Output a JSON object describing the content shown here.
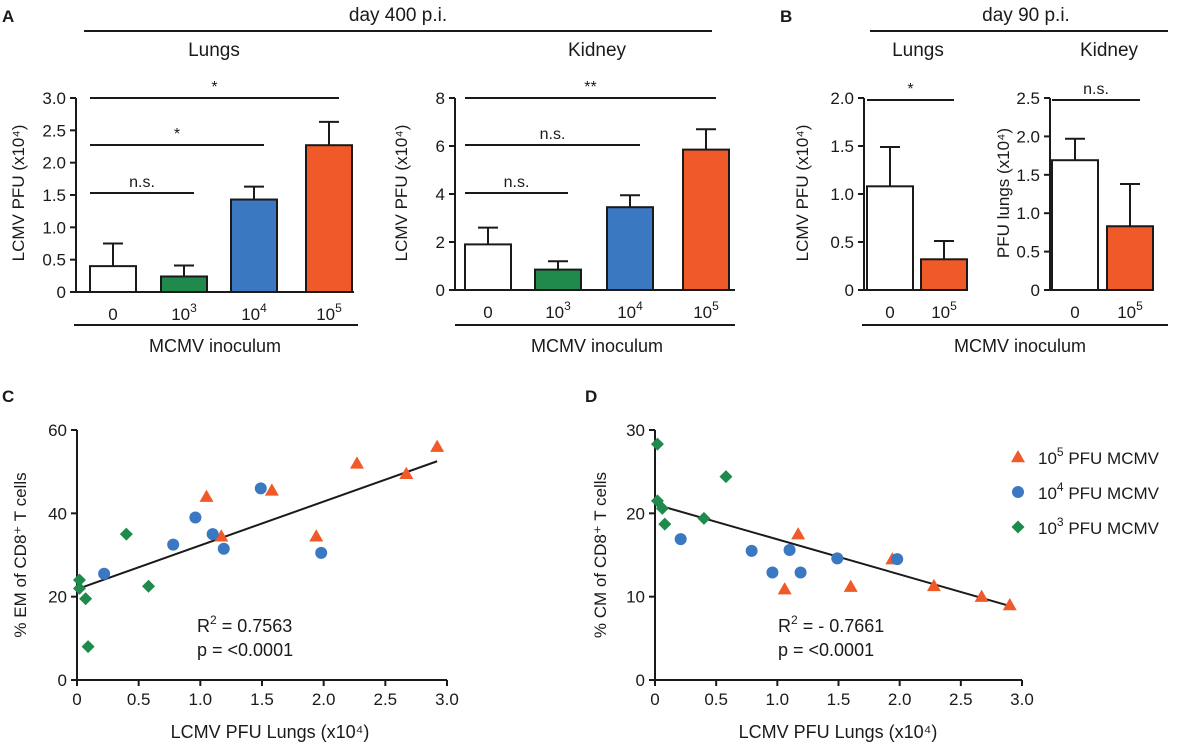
{
  "figure": {
    "panel_labels": {
      "A": "A",
      "B": "B",
      "C": "C",
      "D": "D"
    },
    "headers": {
      "a_time": "day 400 p.i.",
      "b_time": "day 90 p.i."
    },
    "xlabel_inoculum": "MCMV inoculum",
    "colors": {
      "naive": "#ffffff",
      "d3": "#1f8a4c",
      "d4": "#3a78c2",
      "d5": "#f05a28",
      "axis": "#1a1a1a"
    }
  },
  "chart_data": [
    {
      "id": "a_lungs",
      "type": "bar",
      "panel": "A",
      "title": "Lungs",
      "ylabel": "LCMV PFU (x10⁴)",
      "ylim": [
        0,
        3.0
      ],
      "yticks": [
        "0",
        "0.5",
        "1.0",
        "1.5",
        "2.0",
        "2.5",
        "3.0"
      ],
      "categories": [
        {
          "base": "0",
          "exp": ""
        },
        {
          "base": "10",
          "exp": "3"
        },
        {
          "base": "10",
          "exp": "4"
        },
        {
          "base": "10",
          "exp": "5"
        }
      ],
      "values": [
        0.4,
        0.24,
        1.43,
        2.27
      ],
      "errors": [
        0.35,
        0.17,
        0.2,
        0.36
      ],
      "colors": [
        "#ffffff",
        "#1f8a4c",
        "#3a78c2",
        "#f05a28"
      ],
      "significance": [
        {
          "from": 0,
          "to": 1,
          "label": "n.s."
        },
        {
          "from": 0,
          "to": 2,
          "label": "*"
        },
        {
          "from": 0,
          "to": 3,
          "label": "*"
        }
      ],
      "xlabel": "MCMV inoculum"
    },
    {
      "id": "a_kidney",
      "type": "bar",
      "panel": "A",
      "title": "Kidney",
      "ylabel": "LCMV PFU  (x10⁴)",
      "ylim": [
        0,
        8
      ],
      "yticks": [
        "0",
        "2",
        "4",
        "6",
        "8"
      ],
      "categories": [
        {
          "base": "0",
          "exp": ""
        },
        {
          "base": "10",
          "exp": "3"
        },
        {
          "base": "10",
          "exp": "4"
        },
        {
          "base": "10",
          "exp": "5"
        }
      ],
      "values": [
        1.9,
        0.85,
        3.45,
        5.85
      ],
      "errors": [
        0.7,
        0.35,
        0.5,
        0.85
      ],
      "colors": [
        "#ffffff",
        "#1f8a4c",
        "#3a78c2",
        "#f05a28"
      ],
      "significance": [
        {
          "from": 0,
          "to": 1,
          "label": "n.s."
        },
        {
          "from": 0,
          "to": 2,
          "label": "n.s."
        },
        {
          "from": 0,
          "to": 3,
          "label": "**"
        }
      ],
      "xlabel": "MCMV inoculum"
    },
    {
      "id": "b_lungs",
      "type": "bar",
      "panel": "B",
      "title": "Lungs",
      "ylabel": "LCMV PFU (x10⁴)",
      "ylim": [
        0,
        2.0
      ],
      "yticks": [
        "0",
        "0.5",
        "1.0",
        "1.5",
        "2.0"
      ],
      "categories": [
        {
          "base": "0",
          "exp": ""
        },
        {
          "base": "10",
          "exp": "5"
        }
      ],
      "values": [
        1.08,
        0.32
      ],
      "errors": [
        0.41,
        0.19
      ],
      "colors": [
        "#ffffff",
        "#f05a28"
      ],
      "significance": [
        {
          "from": 0,
          "to": 1,
          "label": "*"
        }
      ],
      "xlabel": "MCMV inoculum"
    },
    {
      "id": "b_kidney",
      "type": "bar",
      "panel": "B",
      "title": "Kidney",
      "ylabel": "PFU lungs (x10⁴)",
      "ylim": [
        0,
        2.5
      ],
      "yticks": [
        "0",
        "0.5",
        "1.0",
        "1.5",
        "2.0",
        "2.5"
      ],
      "categories": [
        {
          "base": "0",
          "exp": ""
        },
        {
          "base": "10",
          "exp": "5"
        }
      ],
      "values": [
        1.69,
        0.83
      ],
      "errors": [
        0.28,
        0.55
      ],
      "colors": [
        "#ffffff",
        "#f05a28"
      ],
      "significance": [
        {
          "from": 0,
          "to": 1,
          "label": "n.s."
        }
      ],
      "xlabel": "MCMV inoculum"
    },
    {
      "id": "c_scatter",
      "type": "scatter",
      "panel": "C",
      "xlabel": "LCMV PFU Lungs (x10⁴)",
      "ylabel": "% EM of CD8⁺ T cells",
      "xlim": [
        0,
        3.0
      ],
      "ylim": [
        0,
        60
      ],
      "xticks": [
        "0",
        "0.5",
        "1.0",
        "1.5",
        "2.0",
        "2.5",
        "3.0"
      ],
      "yticks": [
        "0",
        "20",
        "40",
        "60"
      ],
      "series": [
        {
          "name": "10⁵ PFU MCMV",
          "marker": "triangle",
          "color": "#f05a28",
          "x": [
            1.05,
            1.17,
            1.58,
            1.94,
            2.27,
            2.67,
            2.92
          ],
          "y": [
            44,
            34.5,
            45.5,
            34.5,
            52,
            49.5,
            56
          ]
        },
        {
          "name": "10⁴ PFU MCMV",
          "marker": "circle",
          "color": "#3a78c2",
          "x": [
            0.22,
            0.78,
            0.96,
            1.1,
            1.19,
            1.49,
            1.98
          ],
          "y": [
            25.5,
            32.5,
            39,
            35,
            31.5,
            46,
            30.5
          ]
        },
        {
          "name": "10³ PFU MCMV",
          "marker": "diamond",
          "color": "#1f8a4c",
          "x": [
            0.02,
            0.02,
            0.07,
            0.09,
            0.4,
            0.58
          ],
          "y": [
            24,
            22,
            19.5,
            8,
            35,
            22.5
          ]
        }
      ],
      "fit": {
        "x": [
          0.02,
          2.92
        ],
        "y": [
          22,
          52.5
        ]
      },
      "stats": {
        "r2_prefix": "R",
        "r2_exp": "2",
        "r2_value": " = 0.7563",
        "p": "p = <0.0001"
      }
    },
    {
      "id": "d_scatter",
      "type": "scatter",
      "panel": "D",
      "xlabel": "LCMV PFU Lungs (x10⁴)",
      "ylabel": "% CM of CD8⁺ T cells",
      "xlim": [
        0,
        3.0
      ],
      "ylim": [
        0,
        30
      ],
      "xticks": [
        "0",
        "0.5",
        "1.0",
        "1.5",
        "2.0",
        "2.5",
        "3.0"
      ],
      "yticks": [
        "0",
        "10",
        "20",
        "30"
      ],
      "series": [
        {
          "name": "10⁵ PFU MCMV",
          "marker": "triangle",
          "color": "#f05a28",
          "x": [
            1.06,
            1.17,
            1.6,
            1.94,
            2.28,
            2.67,
            2.9
          ],
          "y": [
            10.9,
            17.5,
            11.2,
            14.5,
            11.3,
            10,
            9
          ]
        },
        {
          "name": "10⁴ PFU MCMV",
          "marker": "circle",
          "color": "#3a78c2",
          "x": [
            0.21,
            0.79,
            0.96,
            1.1,
            1.19,
            1.49,
            1.98
          ],
          "y": [
            16.9,
            15.5,
            12.9,
            15.6,
            12.9,
            14.6,
            14.5
          ]
        },
        {
          "name": "10³ PFU MCMV",
          "marker": "diamond",
          "color": "#1f8a4c",
          "x": [
            0.02,
            0.02,
            0.06,
            0.08,
            0.4,
            0.58
          ],
          "y": [
            28.3,
            21.5,
            20.6,
            18.7,
            19.4,
            24.4
          ]
        }
      ],
      "fit": {
        "x": [
          0.02,
          2.92
        ],
        "y": [
          21,
          8.8
        ]
      },
      "stats": {
        "r2_prefix": "R",
        "r2_exp": "2",
        "r2_value": " = - 0.7661",
        "p": "p = <0.0001"
      }
    }
  ],
  "legend": {
    "items": [
      {
        "base": "10",
        "exp": "5",
        "rest": " PFU MCMV",
        "marker": "triangle",
        "color": "#f05a28"
      },
      {
        "base": "10",
        "exp": "4",
        "rest": " PFU MCMV",
        "marker": "circle",
        "color": "#3a78c2"
      },
      {
        "base": "10",
        "exp": "3",
        "rest": " PFU MCMV",
        "marker": "diamond",
        "color": "#1f8a4c"
      }
    ]
  }
}
